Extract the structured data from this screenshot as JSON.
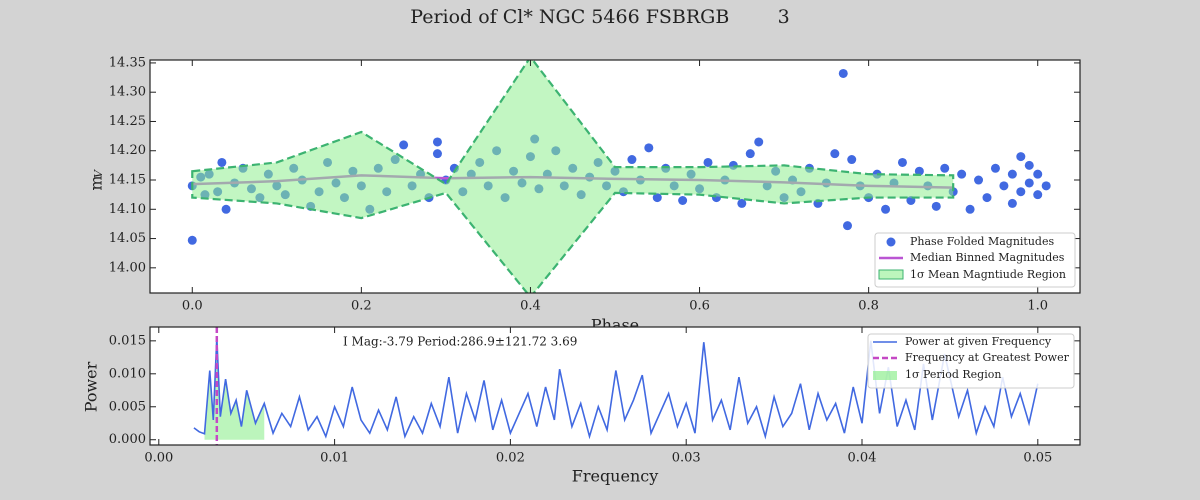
{
  "title": "Period of Cl* NGC 5466 FSBRGB        3",
  "chart_data": [
    {
      "type": "scatter",
      "xlabel": "Phase",
      "ylabel": "m",
      "ylabel_sub": "V",
      "xlim": [
        -0.05,
        1.05
      ],
      "ylim": [
        13.957,
        14.355
      ],
      "xticks": [
        {
          "value": 0,
          "label": "0.0"
        },
        0.2,
        0.4,
        0.6,
        0.8,
        {
          "value": 1,
          "label": "1.0"
        }
      ],
      "yticks": [
        {
          "value": 14,
          "label": "14.00"
        },
        14.05,
        {
          "value": 14.1,
          "label": "14.10"
        },
        14.15,
        {
          "value": 14.2,
          "label": "14.20"
        },
        14.25,
        {
          "value": 14.3,
          "label": "14.30"
        },
        14.35
      ],
      "legend": "lower right",
      "points": {
        "name": "Phase Folded Magnitudes",
        "color": "#4169e1",
        "x": [
          0.0,
          0.0,
          0.01,
          0.015,
          0.02,
          0.03,
          0.035,
          0.04,
          0.05,
          0.06,
          0.07,
          0.08,
          0.09,
          0.1,
          0.11,
          0.12,
          0.13,
          0.14,
          0.15,
          0.16,
          0.17,
          0.18,
          0.19,
          0.2,
          0.21,
          0.22,
          0.23,
          0.24,
          0.25,
          0.26,
          0.27,
          0.28,
          0.29,
          0.29,
          0.3,
          0.31,
          0.32,
          0.33,
          0.34,
          0.35,
          0.36,
          0.37,
          0.38,
          0.39,
          0.4,
          0.405,
          0.41,
          0.42,
          0.43,
          0.44,
          0.45,
          0.46,
          0.47,
          0.48,
          0.49,
          0.5,
          0.51,
          0.52,
          0.53,
          0.54,
          0.55,
          0.56,
          0.57,
          0.58,
          0.59,
          0.6,
          0.61,
          0.62,
          0.63,
          0.64,
          0.65,
          0.66,
          0.67,
          0.68,
          0.69,
          0.7,
          0.71,
          0.72,
          0.73,
          0.74,
          0.75,
          0.76,
          0.77,
          0.775,
          0.78,
          0.79,
          0.8,
          0.81,
          0.82,
          0.83,
          0.84,
          0.85,
          0.86,
          0.87,
          0.88,
          0.89,
          0.9,
          0.91,
          0.92,
          0.93,
          0.94,
          0.95,
          0.96,
          0.97,
          0.97,
          0.98,
          0.98,
          0.99,
          0.99,
          1.0,
          1.0,
          1.01
        ],
        "values": [
          14.047,
          14.14,
          14.155,
          14.125,
          14.16,
          14.13,
          14.18,
          14.1,
          14.145,
          14.17,
          14.135,
          14.12,
          14.16,
          14.14,
          14.125,
          14.17,
          14.15,
          14.105,
          14.13,
          14.18,
          14.145,
          14.12,
          14.165,
          14.14,
          14.1,
          14.17,
          14.13,
          14.185,
          14.21,
          14.14,
          14.16,
          14.12,
          14.195,
          14.215,
          14.15,
          14.17,
          14.13,
          14.16,
          14.18,
          14.14,
          14.2,
          14.12,
          14.165,
          14.145,
          14.19,
          14.22,
          14.135,
          14.16,
          14.2,
          14.14,
          14.17,
          14.125,
          14.155,
          14.18,
          14.14,
          14.165,
          14.13,
          14.185,
          14.15,
          14.205,
          14.12,
          14.17,
          14.14,
          14.115,
          14.16,
          14.135,
          14.18,
          14.12,
          14.15,
          14.175,
          14.11,
          14.195,
          14.215,
          14.14,
          14.165,
          14.12,
          14.15,
          14.13,
          14.17,
          14.11,
          14.145,
          14.195,
          14.332,
          14.072,
          14.185,
          14.14,
          14.12,
          14.16,
          14.1,
          14.145,
          14.18,
          14.115,
          14.165,
          14.14,
          14.105,
          14.17,
          14.13,
          14.16,
          14.1,
          14.15,
          14.12,
          14.17,
          14.14,
          14.16,
          14.11,
          14.19,
          14.13,
          14.175,
          14.145,
          14.16,
          14.125,
          14.14
        ]
      },
      "median": {
        "name": "Median Binned Magnitudes",
        "color": "#ba55d3",
        "x": [
          0,
          0.1,
          0.2,
          0.3,
          0.4,
          0.5,
          0.6,
          0.7,
          0.8,
          0.9
        ],
        "values": [
          14.143,
          14.148,
          14.158,
          14.153,
          14.155,
          14.152,
          14.15,
          14.146,
          14.14,
          14.137
        ]
      },
      "region": {
        "name": "1σ Mean Magntiude Region",
        "color": "#90ee90",
        "edge_color": "#3cb371",
        "x": [
          0,
          0.1,
          0.2,
          0.3,
          0.4,
          0.5,
          0.6,
          0.7,
          0.8,
          0.9
        ],
        "upper": [
          14.165,
          14.18,
          14.232,
          14.143,
          14.36,
          14.172,
          14.172,
          14.175,
          14.16,
          14.158
        ],
        "lower": [
          14.12,
          14.11,
          14.085,
          14.128,
          13.95,
          14.128,
          14.125,
          14.11,
          14.12,
          14.12
        ]
      }
    },
    {
      "type": "line",
      "xlabel": "Frequency",
      "ylabel": "Power",
      "annotation": "I Mag:-3.79 Period:286.9±121.72 3.69",
      "xlim": [
        -0.0005,
        0.0524
      ],
      "ylim": [
        -0.0008,
        0.0171
      ],
      "xticks": [
        {
          "value": 0,
          "label": "0.00"
        },
        0.01,
        0.02,
        0.03,
        0.04,
        0.05
      ],
      "yticks": [
        {
          "value": 0,
          "label": "0.000"
        },
        0.005,
        {
          "value": 0.01,
          "label": "0.010"
        },
        0.015
      ],
      "legend": "upper right",
      "x": [
        0.002,
        0.0023,
        0.0026,
        0.0029,
        0.0031,
        0.0033,
        0.0035,
        0.0038,
        0.0041,
        0.0044,
        0.0047,
        0.005,
        0.0055,
        0.006,
        0.0065,
        0.007,
        0.0075,
        0.008,
        0.0085,
        0.009,
        0.0095,
        0.01,
        0.0105,
        0.011,
        0.0115,
        0.012,
        0.0125,
        0.013,
        0.0135,
        0.014,
        0.0145,
        0.015,
        0.0155,
        0.016,
        0.0165,
        0.017,
        0.0175,
        0.018,
        0.0185,
        0.019,
        0.0195,
        0.02,
        0.0205,
        0.021,
        0.0215,
        0.022,
        0.0225,
        0.0228,
        0.0235,
        0.024,
        0.0245,
        0.025,
        0.0255,
        0.026,
        0.0265,
        0.027,
        0.0275,
        0.028,
        0.0285,
        0.029,
        0.0295,
        0.03,
        0.0305,
        0.031,
        0.0315,
        0.032,
        0.0325,
        0.033,
        0.0335,
        0.034,
        0.0345,
        0.035,
        0.0355,
        0.036,
        0.0365,
        0.037,
        0.0375,
        0.038,
        0.0385,
        0.039,
        0.0395,
        0.04,
        0.0405,
        0.041,
        0.0415,
        0.042,
        0.0425,
        0.043,
        0.0435,
        0.044,
        0.0447,
        0.0455,
        0.046,
        0.0465,
        0.047,
        0.0475,
        0.048,
        0.0485,
        0.049,
        0.0495,
        0.05
      ],
      "series": [
        {
          "name": "Power at given Frequency",
          "color": "#4169e1",
          "values": [
            0.0018,
            0.0012,
            0.0009,
            0.0105,
            0.003,
            0.0155,
            0.0035,
            0.0092,
            0.004,
            0.006,
            0.002,
            0.0075,
            0.0025,
            0.0055,
            0.001,
            0.004,
            0.002,
            0.0065,
            0.0015,
            0.0035,
            0.0005,
            0.005,
            0.002,
            0.008,
            0.003,
            0.001,
            0.0045,
            0.0015,
            0.0065,
            0.0005,
            0.0035,
            0.001,
            0.0055,
            0.002,
            0.0095,
            0.001,
            0.007,
            0.003,
            0.009,
            0.0015,
            0.006,
            0.001,
            0.004,
            0.007,
            0.002,
            0.008,
            0.003,
            0.0107,
            0.002,
            0.0055,
            0.0005,
            0.005,
            0.0015,
            0.0105,
            0.003,
            0.006,
            0.0098,
            0.001,
            0.004,
            0.007,
            0.002,
            0.0055,
            0.001,
            0.0148,
            0.003,
            0.006,
            0.0015,
            0.0095,
            0.0025,
            0.005,
            0.0005,
            0.0065,
            0.002,
            0.004,
            0.0085,
            0.0015,
            0.007,
            0.003,
            0.0055,
            0.001,
            0.008,
            0.0025,
            0.015,
            0.004,
            0.011,
            0.002,
            0.006,
            0.0015,
            0.0115,
            0.003,
            0.013,
            0.0035,
            0.0075,
            0.001,
            0.005,
            0.002,
            0.0095,
            0.0035,
            0.007,
            0.0025,
            0.0085
          ]
        }
      ],
      "peak": {
        "name": "Frequency at Greatest Power",
        "color": "#c548c5",
        "value": 0.0033
      },
      "region": {
        "name": "1σ Period Region",
        "color": "#90ee90",
        "range": [
          0.0026,
          0.006
        ]
      }
    }
  ]
}
